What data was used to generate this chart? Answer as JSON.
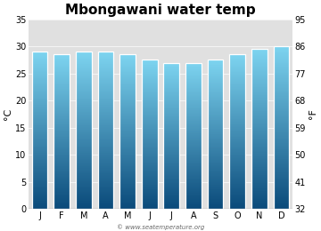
{
  "title": "Mbongawani water temp",
  "months": [
    "J",
    "F",
    "M",
    "A",
    "M",
    "J",
    "J",
    "A",
    "S",
    "O",
    "N",
    "D"
  ],
  "values_c": [
    29.0,
    28.5,
    29.0,
    29.0,
    28.5,
    27.5,
    27.0,
    27.0,
    27.5,
    28.5,
    29.5,
    30.0
  ],
  "ylabel_left": "°C",
  "ylabel_right": "°F",
  "ylim_c": [
    0,
    35
  ],
  "yticks_c": [
    0,
    5,
    10,
    15,
    20,
    25,
    30,
    35
  ],
  "yticks_f": [
    32,
    41,
    50,
    59,
    68,
    77,
    86,
    95
  ],
  "bar_top_color": "#7dd4f0",
  "bar_bottom_color": "#0a4a7a",
  "bar_edge_color": "#ffffff",
  "bg_plot_color": "#e0e0e0",
  "bg_figure_color": "#ffffff",
  "watermark": "© www.seatemperature.org",
  "title_fontsize": 11,
  "axis_fontsize": 7,
  "label_fontsize": 8
}
